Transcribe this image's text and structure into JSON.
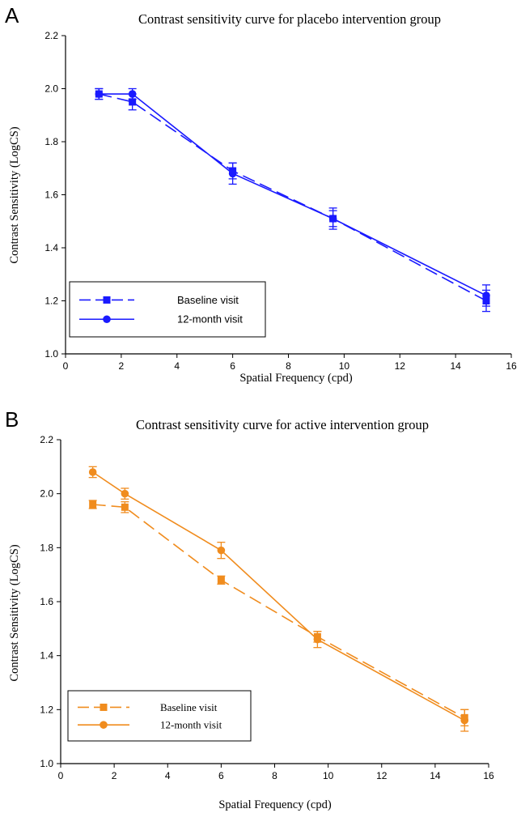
{
  "chart_data": [
    {
      "panel": "A",
      "type": "line",
      "title": "Contrast sensitivity curve for placebo intervention group",
      "xlabel": "Spatial Frequency (cpd)",
      "ylabel": "Contrast Sensitivity (LogCS)",
      "xlim": [
        0,
        16
      ],
      "ylim": [
        1.0,
        2.2
      ],
      "xticks": [
        0,
        2,
        4,
        6,
        8,
        10,
        12,
        14,
        16
      ],
      "xtick_labels": [
        "0",
        "2",
        "4",
        "6",
        "8",
        "10",
        "12",
        "14",
        "16"
      ],
      "yticks": [
        1.0,
        1.2,
        1.4,
        1.6,
        1.8,
        2.0,
        2.2
      ],
      "ytick_labels": [
        "1.0",
        "1.2",
        "1.4",
        "1.6",
        "1.8",
        "2.0",
        "2.2"
      ],
      "color": "#1a1aff",
      "legend_position": "bottom-left",
      "series": [
        {
          "name": "Baseline visit",
          "style": "dashed",
          "marker": "square",
          "x": [
            1.2,
            2.4,
            6.0,
            9.6,
            15.1
          ],
          "y": [
            1.98,
            1.95,
            1.69,
            1.51,
            1.2
          ],
          "err": [
            0.02,
            0.03,
            0.03,
            0.03,
            0.04
          ]
        },
        {
          "name": "12-month visit",
          "style": "solid",
          "marker": "circle",
          "x": [
            1.2,
            2.4,
            6.0,
            9.6,
            15.1
          ],
          "y": [
            1.98,
            1.98,
            1.68,
            1.51,
            1.22
          ],
          "err": [
            0.02,
            0.02,
            0.04,
            0.04,
            0.04
          ]
        }
      ]
    },
    {
      "panel": "B",
      "type": "line",
      "title": "Contrast sensitivity curve for active intervention group",
      "xlabel": "Spatial Frequency (cpd)",
      "ylabel": "Contrast Sensitivity (LogCS)",
      "xlim": [
        0,
        16
      ],
      "ylim": [
        1.0,
        2.2
      ],
      "xticks": [
        0,
        2,
        4,
        6,
        8,
        10,
        12,
        14,
        16
      ],
      "xtick_labels": [
        "0",
        "2",
        "4",
        "6",
        "8",
        "10",
        "12",
        "14",
        "16"
      ],
      "yticks": [
        1.0,
        1.2,
        1.4,
        1.6,
        1.8,
        2.0,
        2.2
      ],
      "ytick_labels": [
        "1.0",
        "1.2",
        "1.4",
        "1.6",
        "1.8",
        "2.0",
        "2.2"
      ],
      "color": "#f08c1e",
      "legend_position": "bottom-left",
      "series": [
        {
          "name": "Baseline visit",
          "style": "dashed",
          "marker": "square",
          "x": [
            1.2,
            2.4,
            6.0,
            9.6,
            15.1
          ],
          "y": [
            1.96,
            1.95,
            1.68,
            1.47,
            1.17
          ],
          "err": [
            0.015,
            0.02,
            0.015,
            0.02,
            0.03
          ]
        },
        {
          "name": "12-month visit",
          "style": "solid",
          "marker": "circle",
          "x": [
            1.2,
            2.4,
            6.0,
            9.6,
            15.1
          ],
          "y": [
            2.08,
            2.0,
            1.79,
            1.46,
            1.16
          ],
          "err": [
            0.02,
            0.02,
            0.03,
            0.03,
            0.04
          ]
        }
      ]
    }
  ]
}
